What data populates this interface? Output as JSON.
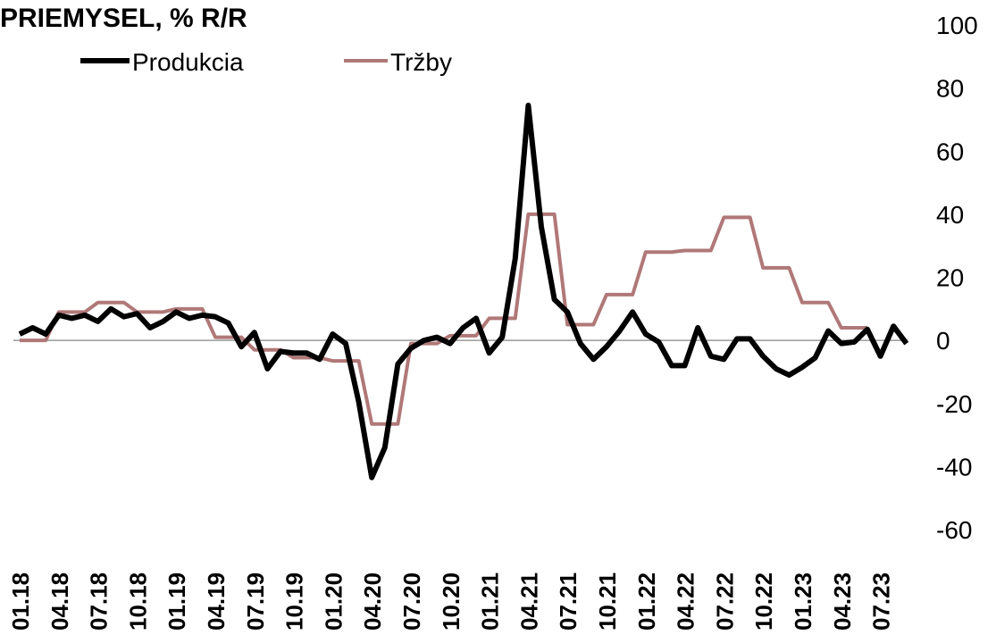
{
  "chart_data": {
    "type": "line",
    "title": "PRIEMYSEL, % R/R",
    "categories": [
      "01.18",
      null,
      null,
      "04.18",
      null,
      null,
      "07.18",
      null,
      null,
      "10.18",
      null,
      null,
      "01.19",
      null,
      null,
      "04.19",
      null,
      null,
      "07.19",
      null,
      null,
      "10.19",
      null,
      null,
      "01.20",
      null,
      null,
      "04.20",
      null,
      null,
      "07.20",
      null,
      null,
      "10.20",
      null,
      null,
      "01.21",
      null,
      null,
      "04.21",
      null,
      null,
      "07.21",
      null,
      null,
      "10.21",
      null,
      null,
      "01.22",
      null,
      null,
      "04.22",
      null,
      null,
      "07.22",
      null,
      null,
      "10.22",
      null,
      null,
      "01.23",
      null,
      null,
      "04.23",
      null,
      null,
      "07.23",
      null,
      null
    ],
    "series": [
      {
        "name": "Produkcia",
        "color": "#000000",
        "values": [
          2,
          4,
          2,
          8,
          7,
          8,
          6,
          10,
          7.5,
          8.5,
          4,
          6,
          9,
          7,
          8,
          7.5,
          5.5,
          -2,
          2.5,
          -9,
          -3.5,
          -4,
          -4,
          -6,
          2,
          -1,
          -19.5,
          -43.5,
          -34,
          -7.5,
          -2.5,
          0,
          1,
          -1,
          4,
          7,
          -4,
          1,
          26,
          74.5,
          36,
          13,
          9,
          -1,
          -6,
          -2,
          3,
          9,
          2,
          -0.5,
          -8,
          -8,
          4,
          -5,
          -6,
          0.5,
          0.5,
          -5,
          -9,
          -11,
          -8.5,
          -5.5,
          3,
          -1,
          -0.5,
          3.5,
          -5,
          4.5,
          -1
        ]
      },
      {
        "name": "Tržby",
        "color": "#b07878",
        "values": [
          0,
          0,
          0,
          9,
          9,
          9,
          12,
          12,
          12,
          9,
          9,
          9,
          10,
          10,
          10,
          1,
          1,
          1,
          -3,
          -3,
          -3,
          -5.5,
          -5.5,
          -5.5,
          -6.5,
          -6.5,
          -6.5,
          -26.5,
          -26.5,
          -26.5,
          -1,
          -1,
          -1,
          1.5,
          1.5,
          1.5,
          7,
          7,
          7,
          40,
          40,
          40,
          5,
          5,
          5,
          14.5,
          14.5,
          14.5,
          28,
          28,
          28,
          28.5,
          28.5,
          28.5,
          39,
          39,
          39,
          23,
          23,
          23,
          12,
          12,
          12,
          4,
          4,
          4,
          null,
          null,
          null
        ]
      }
    ],
    "ylim": [
      -60,
      100
    ],
    "yticks": [
      -60,
      -40,
      -20,
      0,
      20,
      40,
      60,
      80,
      100
    ],
    "grid": false
  }
}
